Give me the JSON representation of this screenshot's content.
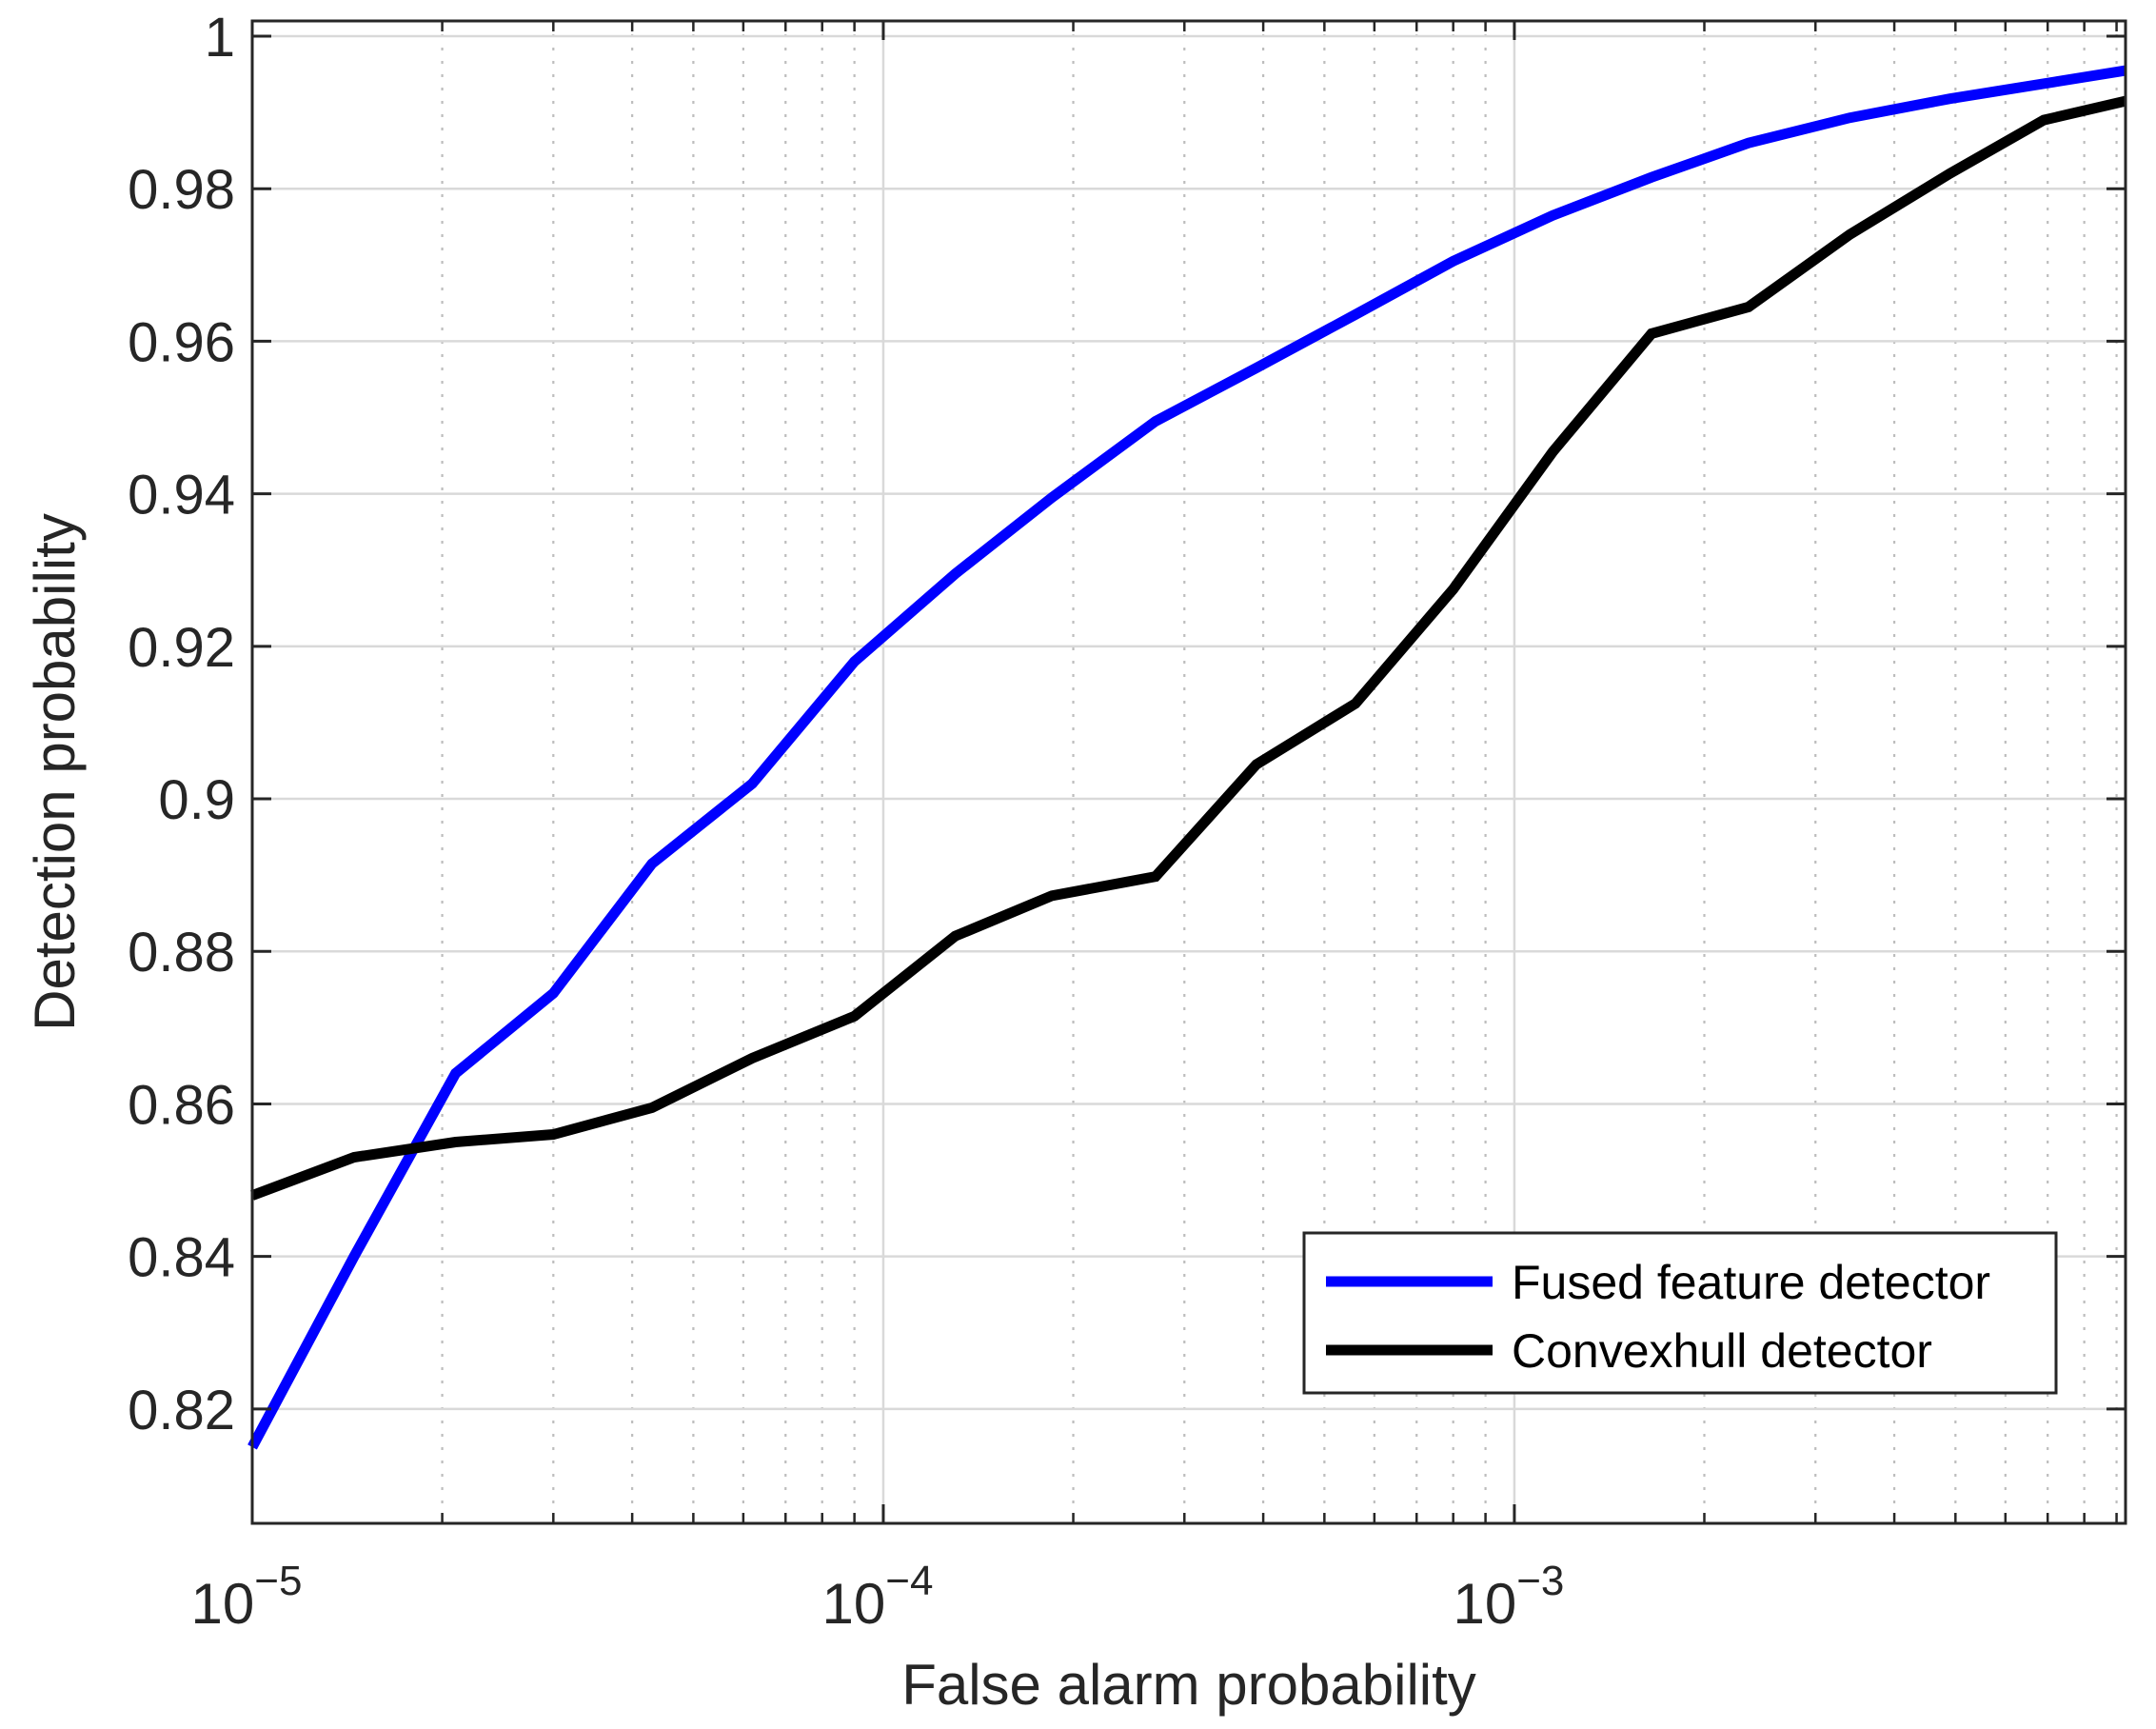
{
  "chart_data": {
    "type": "line",
    "title": "",
    "xlabel": "False alarm probability",
    "ylabel": "Detection probability",
    "x_scale": "log",
    "xlim": [
      1e-05,
      0.0093
    ],
    "ylim": [
      0.805,
      1.002
    ],
    "grid": true,
    "legend_position": "bottom-right",
    "x_ticks": [
      {
        "value": 1e-05,
        "label": "10",
        "exp": "−5"
      },
      {
        "value": 0.0001,
        "label": "10",
        "exp": "−4"
      },
      {
        "value": 0.001,
        "label": "10",
        "exp": "−3"
      }
    ],
    "y_ticks": [
      {
        "value": 0.82,
        "label": "0.82"
      },
      {
        "value": 0.84,
        "label": "0.84"
      },
      {
        "value": 0.86,
        "label": "0.86"
      },
      {
        "value": 0.88,
        "label": "0.88"
      },
      {
        "value": 0.9,
        "label": "0.9"
      },
      {
        "value": 0.92,
        "label": "0.92"
      },
      {
        "value": 0.94,
        "label": "0.94"
      },
      {
        "value": 0.96,
        "label": "0.96"
      },
      {
        "value": 0.98,
        "label": "0.98"
      },
      {
        "value": 1.0,
        "label": "1"
      }
    ],
    "series": [
      {
        "name": "Fused feature detector",
        "color": "#0000ff",
        "x": [
          1e-05,
          1.45e-05,
          2.1e-05,
          3e-05,
          4.3e-05,
          6.2e-05,
          9e-05,
          0.00013,
          0.000185,
          0.00027,
          0.00039,
          0.00056,
          0.0008,
          0.00115,
          0.00165,
          0.00235,
          0.0034,
          0.0049,
          0.0093
        ],
        "y": [
          0.815,
          0.84,
          0.864,
          0.8745,
          0.8915,
          0.902,
          0.918,
          0.9295,
          0.9395,
          0.9495,
          0.9565,
          0.9635,
          0.9705,
          0.9765,
          0.9815,
          0.986,
          0.9893,
          0.9918,
          0.9955
        ]
      },
      {
        "name": "Convexhull detector",
        "color": "#000000",
        "x": [
          1e-05,
          1.45e-05,
          2.1e-05,
          3e-05,
          4.3e-05,
          6.2e-05,
          9e-05,
          0.00013,
          0.000185,
          0.00027,
          0.00039,
          0.00056,
          0.0008,
          0.00115,
          0.00165,
          0.00235,
          0.0034,
          0.0049,
          0.0069,
          0.0093
        ],
        "y": [
          0.848,
          0.853,
          0.855,
          0.856,
          0.8595,
          0.866,
          0.8715,
          0.882,
          0.8873,
          0.8898,
          0.9045,
          0.9125,
          0.9275,
          0.9455,
          0.961,
          0.9645,
          0.974,
          0.982,
          0.989,
          0.9915
        ]
      }
    ]
  }
}
